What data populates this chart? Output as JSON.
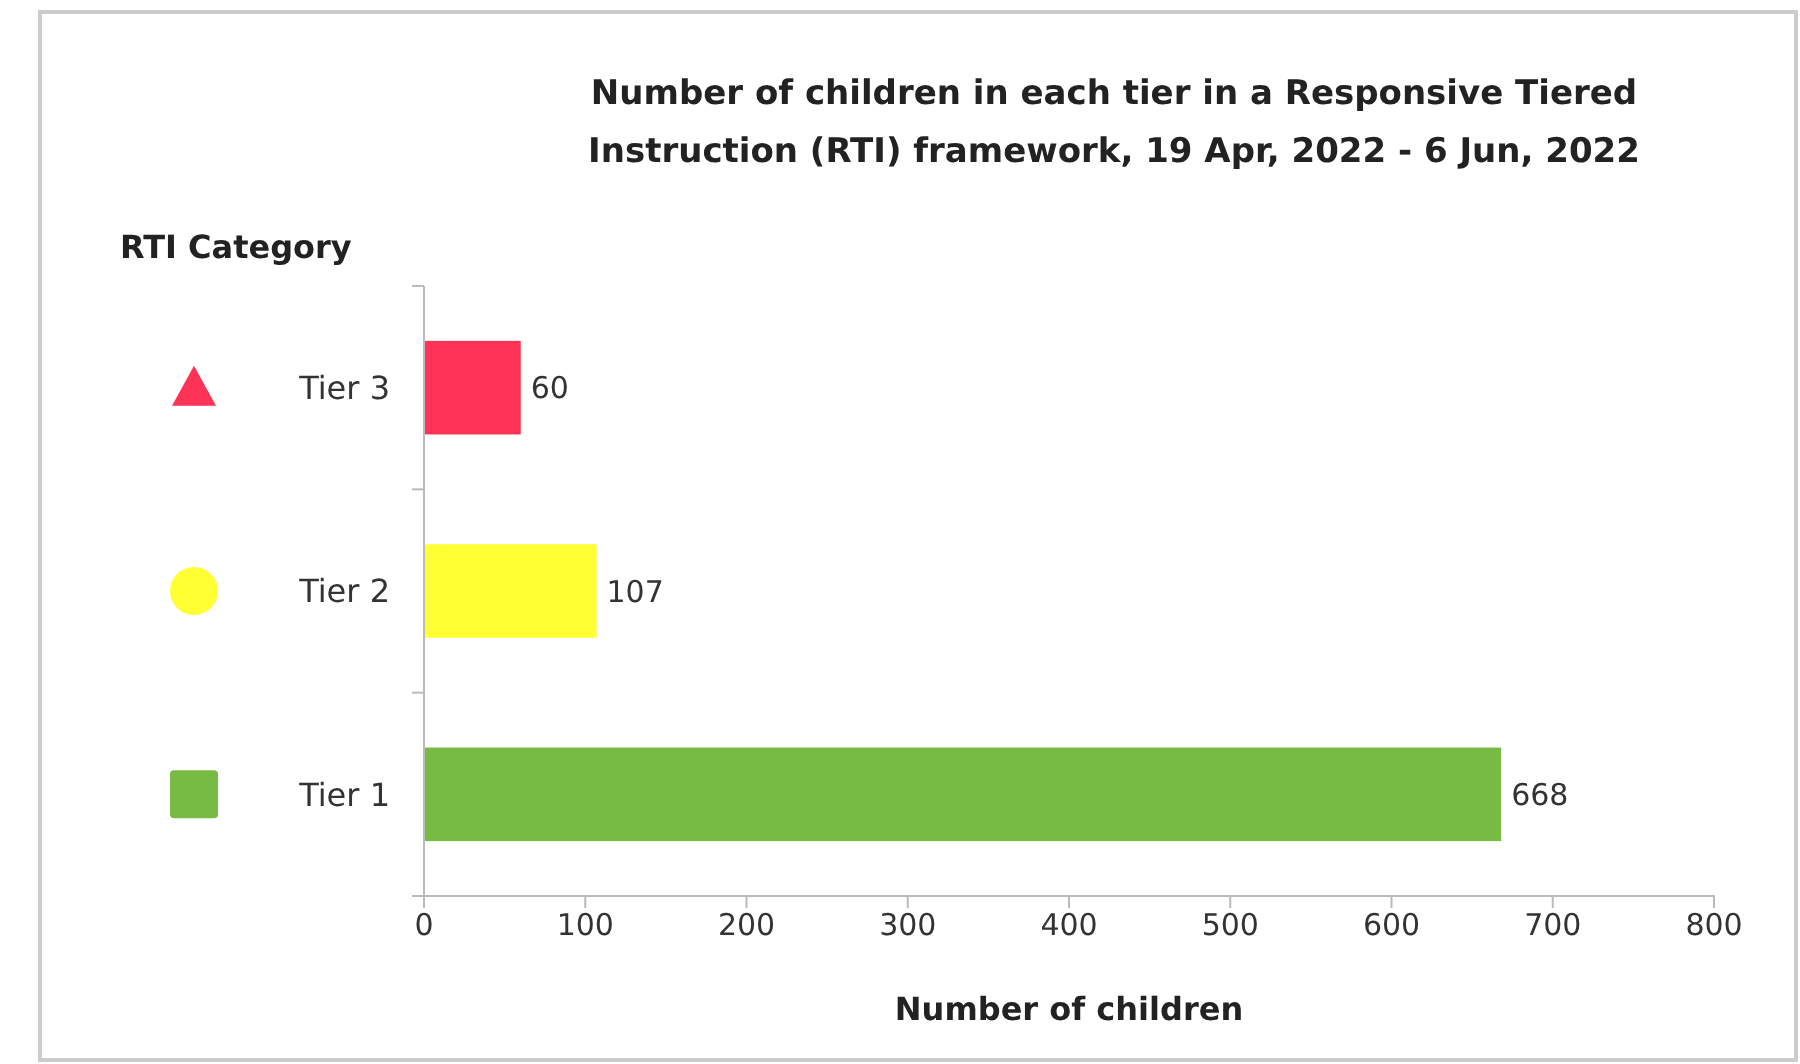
{
  "chart_data": {
    "type": "bar",
    "orientation": "horizontal",
    "title": "Number of children in each tier in a Responsive Tiered Instruction (RTI) framework, 19 Apr, 2022 - 6 Jun, 2022",
    "xlabel": "Number of children",
    "ylabel": "RTI Category",
    "categories": [
      "Tier 3",
      "Tier 2",
      "Tier 1"
    ],
    "values": [
      60,
      107,
      668
    ],
    "colors": [
      "#ff3355",
      "#ffff33",
      "#77bb44"
    ],
    "xlim": [
      0,
      800
    ],
    "xticks": [
      0,
      100,
      200,
      300,
      400,
      500,
      600,
      700,
      800
    ],
    "data_labels": true,
    "grid": false
  }
}
